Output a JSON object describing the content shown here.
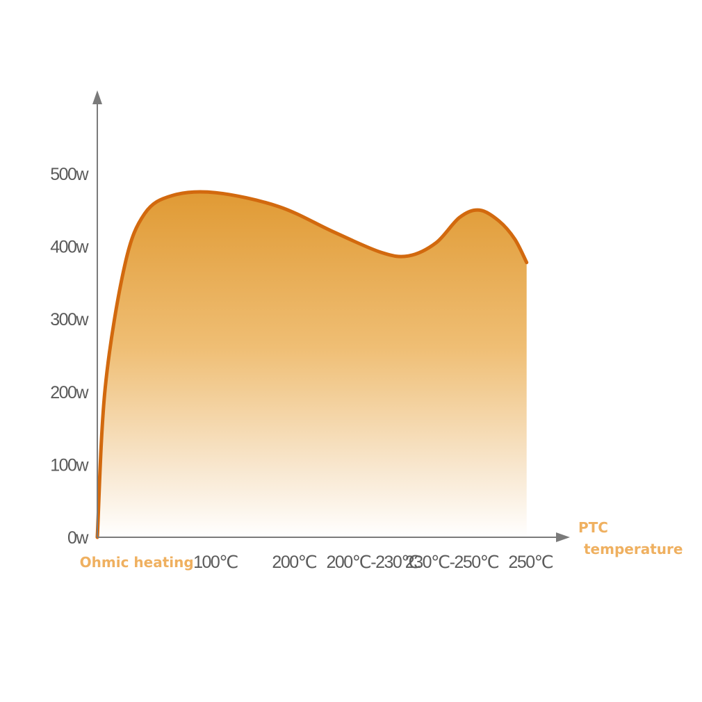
{
  "chart_data": {
    "type": "area",
    "colors": {
      "line": "#d2690e",
      "fill_top": "#e09a34",
      "fill_bottom": "#ffffff",
      "axis": "#7a7a7a",
      "label_accent": "#efb060"
    },
    "y_ticks": [
      {
        "value": 0,
        "label": "0w"
      },
      {
        "value": 100,
        "label": "100w"
      },
      {
        "value": 200,
        "label": "200w"
      },
      {
        "value": 300,
        "label": "300w"
      },
      {
        "value": 400,
        "label": "400w"
      },
      {
        "value": 500,
        "label": "500w"
      }
    ],
    "ylim": [
      0,
      600
    ],
    "categories": [
      "Ohmic heating",
      "100℃",
      "200℃",
      "200℃-230℃",
      "230℃-250℃",
      "250℃"
    ],
    "x_axis_label_line1": "PTC",
    "x_axis_label_line2": "temperature",
    "xlim": [
      0,
      6
    ],
    "points": [
      {
        "x": 0.0,
        "y": 0
      },
      {
        "x": 0.1,
        "y": 205
      },
      {
        "x": 0.35,
        "y": 375
      },
      {
        "x": 0.6,
        "y": 445
      },
      {
        "x": 0.95,
        "y": 470
      },
      {
        "x": 1.5,
        "y": 474
      },
      {
        "x": 2.3,
        "y": 455
      },
      {
        "x": 3.0,
        "y": 420
      },
      {
        "x": 3.6,
        "y": 392
      },
      {
        "x": 3.95,
        "y": 387
      },
      {
        "x": 4.3,
        "y": 405
      },
      {
        "x": 4.6,
        "y": 440
      },
      {
        "x": 4.85,
        "y": 450
      },
      {
        "x": 5.1,
        "y": 435
      },
      {
        "x": 5.3,
        "y": 410
      },
      {
        "x": 5.45,
        "y": 378
      }
    ]
  }
}
